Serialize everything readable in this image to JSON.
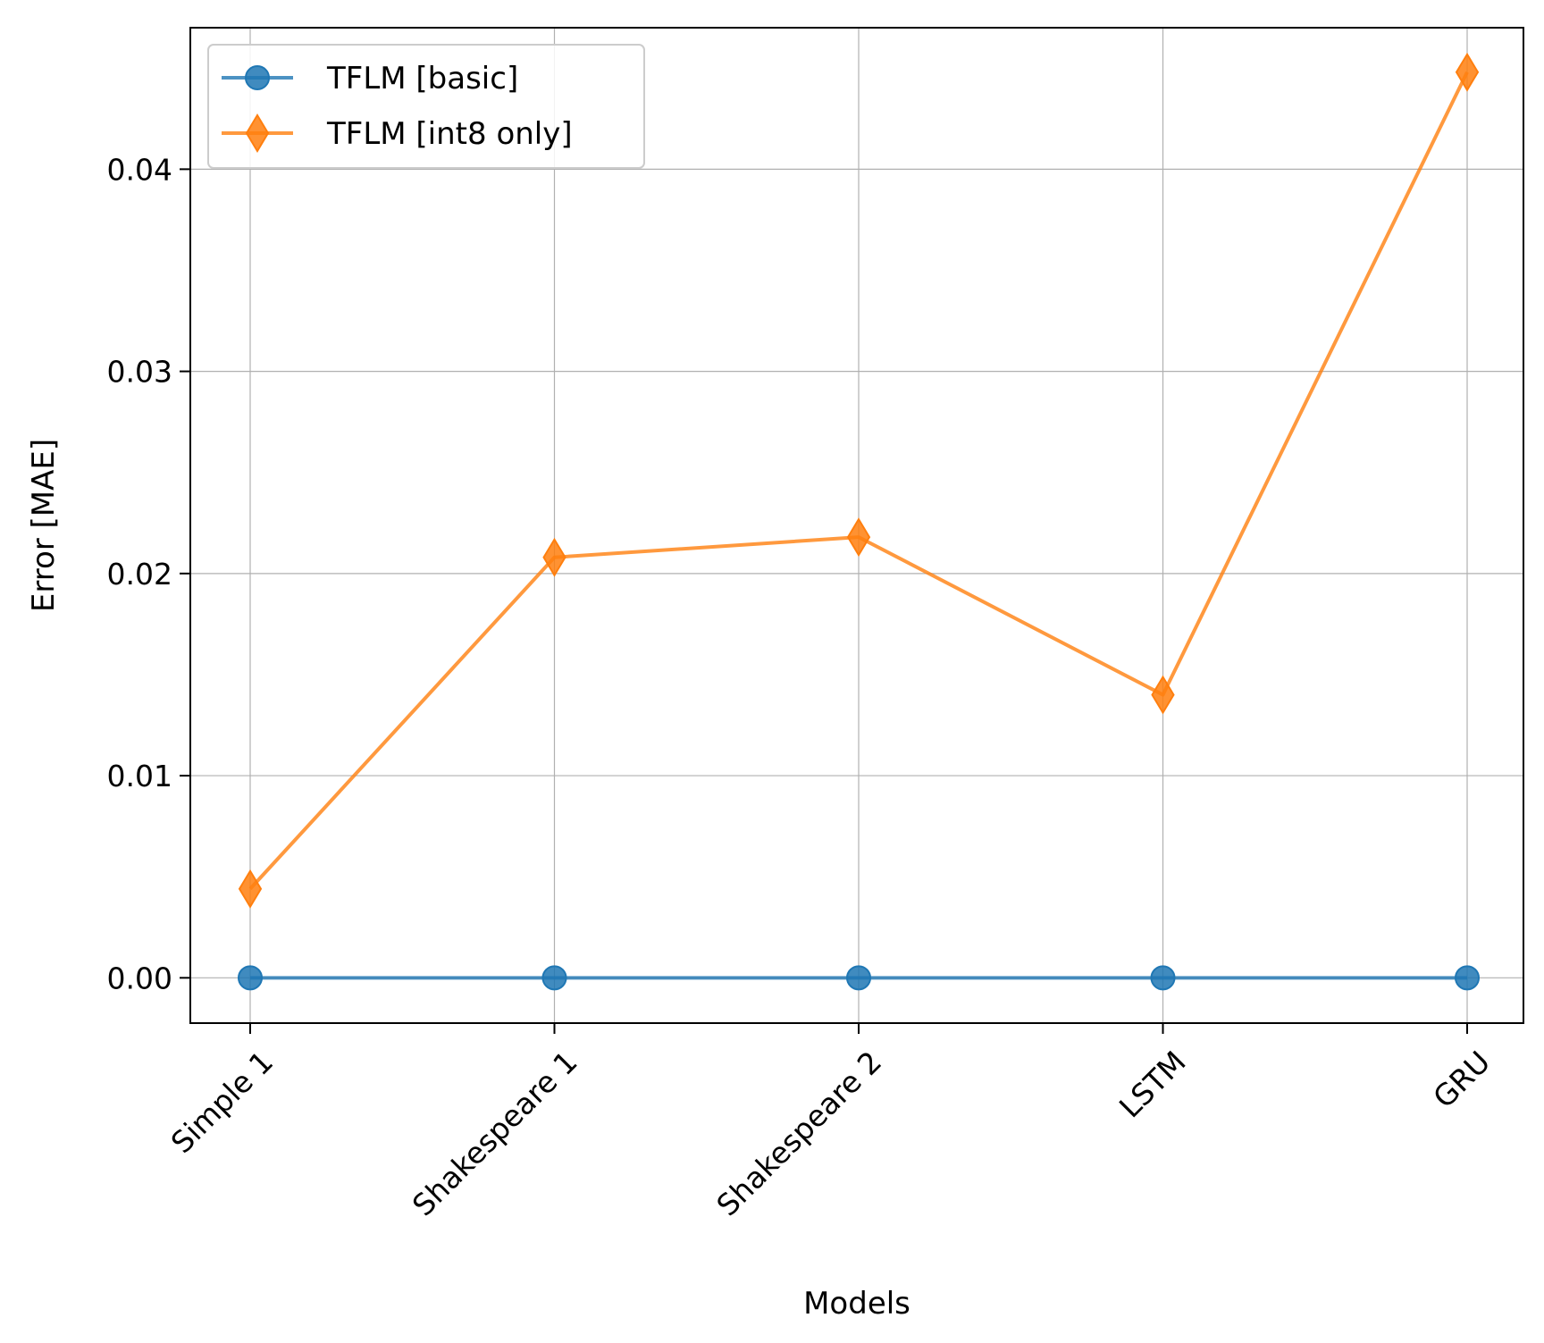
{
  "chart_data": {
    "type": "line",
    "categories": [
      "Simple 1",
      "Shakespeare 1",
      "Shakespeare 2",
      "LSTM",
      "GRU"
    ],
    "series": [
      {
        "name": "TFLM [basic]",
        "values": [
          0.0,
          0.0,
          0.0,
          0.0,
          0.0
        ],
        "color": "#1f77b4",
        "marker": "circle"
      },
      {
        "name": "TFLM [int8 only]",
        "values": [
          0.0044,
          0.0208,
          0.0218,
          0.014,
          0.0448
        ],
        "color": "#ff7f0e",
        "marker": "diamond"
      }
    ],
    "xlabel": "Models",
    "ylabel": "Error [MAE]",
    "ylim": [
      -0.00224,
      0.047
    ],
    "yticks": [
      0.0,
      0.01,
      0.02,
      0.03,
      0.04
    ],
    "ytick_labels": [
      "0.00",
      "0.01",
      "0.02",
      "0.03",
      "0.04"
    ],
    "grid": true,
    "legend_position": "upper-left"
  }
}
